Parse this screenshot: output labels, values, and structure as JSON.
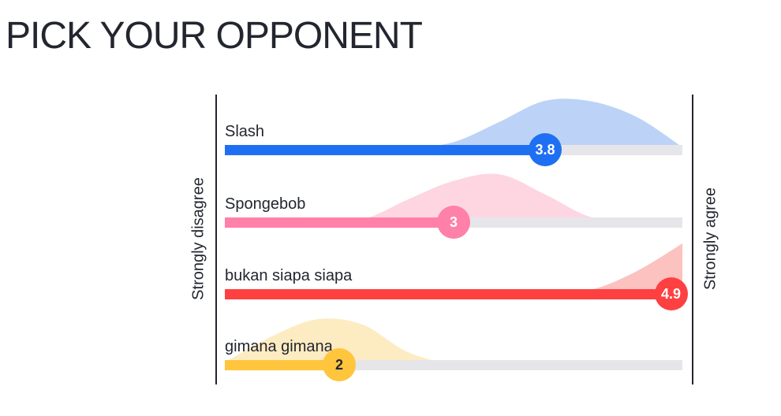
{
  "page": {
    "title": "PICK YOUR OPPONENT"
  },
  "scale": {
    "min": 1,
    "max": 5,
    "left_label": "Strongly disagree",
    "right_label": "Strongly agree"
  },
  "opponents": [
    {
      "name": "Slash",
      "value": 3.8,
      "value_label": "3.8",
      "color": "#1f6ff2",
      "dist_color": "#bcd3f7",
      "text_color": "#ffffff",
      "distribution": [
        0.02,
        0.03,
        0.04,
        0.02,
        0.03,
        0.15,
        0.55,
        0.97,
        0.96,
        0.65,
        0.05
      ]
    },
    {
      "name": "Spongebob",
      "value": 3.0,
      "value_label": "3",
      "color": "#ff80a8",
      "dist_color": "#fdd6e2",
      "text_color": "#ffffff",
      "distribution": [
        0.0,
        0.0,
        0.0,
        0.05,
        0.45,
        0.82,
        0.95,
        0.55,
        0.1,
        0.02,
        0.0
      ]
    },
    {
      "name": "bukan siapa siapa",
      "value": 4.9,
      "value_label": "4.9",
      "color": "#ff4040",
      "dist_color": "#fcc2c0",
      "text_color": "#ffffff",
      "distribution": [
        0.0,
        0.0,
        0.0,
        0.0,
        0.0,
        0.0,
        0.0,
        0.01,
        0.08,
        0.45,
        1.0
      ]
    },
    {
      "name": "gimana gimana",
      "value": 2.0,
      "value_label": "2",
      "color": "#ffc53d",
      "dist_color": "#fdebc2",
      "text_color": "#23262f",
      "distribution": [
        0.05,
        0.55,
        0.9,
        0.8,
        0.25,
        0.02,
        0.0,
        0.0,
        0.0,
        0.0,
        0.0
      ]
    }
  ]
}
